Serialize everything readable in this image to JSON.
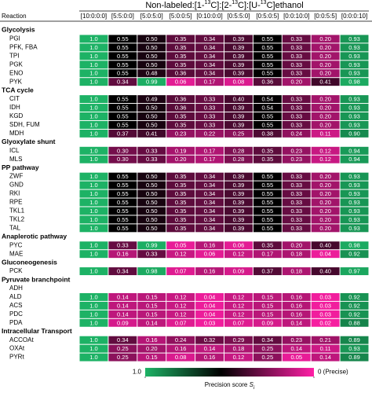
{
  "chart_data": {
    "type": "heatmap",
    "title_parts": [
      "Non-labeled:[1-",
      "13",
      "C]:[2-",
      "13",
      "C]:[U-",
      "13",
      "C]ethanol"
    ],
    "row_header": "Reaction",
    "columns": [
      "[10:0:0:0]",
      "[5:5:0:0]",
      "[5:0:5:0]",
      "[5:0:0:5]",
      "[0:10:0:0]",
      "[0:5:5:0]",
      "[0:5:0:5]",
      "[0:0:10:0]",
      "[0:0:5:5]",
      "[0:0:0:10]"
    ],
    "groups": [
      {
        "name": "Glycolysis",
        "rows": [
          {
            "label": "PGI",
            "values": [
              1,
              0.55,
              0.5,
              0.35,
              0.34,
              0.39,
              0.55,
              0.33,
              0.2,
              0.93
            ],
            "value_labels": [
              "1.0",
              "0.55",
              "0.50",
              "0.35",
              "0.34",
              "0.39",
              "0.55",
              "0.33",
              "0.20",
              "0.93"
            ]
          },
          {
            "label": "PFK, FBA",
            "values": [
              1,
              0.55,
              0.5,
              0.35,
              0.34,
              0.39,
              0.55,
              0.33,
              0.2,
              0.93
            ],
            "value_labels": [
              "1.0",
              "0.55",
              "0.50",
              "0.35",
              "0.34",
              "0.39",
              "0.55",
              "0.33",
              "0.20",
              "0.93"
            ]
          },
          {
            "label": "TPI",
            "values": [
              1,
              0.55,
              0.5,
              0.35,
              0.34,
              0.39,
              0.55,
              0.33,
              0.2,
              0.93
            ],
            "value_labels": [
              "1.0",
              "0.55",
              "0.50",
              "0.35",
              "0.34",
              "0.39",
              "0.55",
              "0.33",
              "0.20",
              "0.93"
            ]
          },
          {
            "label": "PGK",
            "values": [
              1,
              0.55,
              0.5,
              0.35,
              0.34,
              0.39,
              0.55,
              0.33,
              0.2,
              0.93
            ],
            "value_labels": [
              "1.0",
              "0.55",
              "0.50",
              "0.35",
              "0.34",
              "0.39",
              "0.55",
              "0.33",
              "0.20",
              "0.93"
            ]
          },
          {
            "label": "ENO",
            "values": [
              1,
              0.55,
              0.48,
              0.36,
              0.34,
              0.39,
              0.55,
              0.33,
              0.2,
              0.93
            ],
            "value_labels": [
              "1.0",
              "0.55",
              "0.48",
              "0.36",
              "0.34",
              "0.39",
              "0.55",
              "0.33",
              "0.20",
              "0.93"
            ]
          },
          {
            "label": "PYK",
            "values": [
              1,
              0.34,
              0.99,
              0.06,
              0.17,
              0.08,
              0.36,
              0.2,
              0.41,
              0.98
            ],
            "value_labels": [
              "1.0",
              "0.34",
              "0.99",
              "0.06",
              "0.17",
              "0.08",
              "0.36",
              "0.20",
              "0.41",
              "0.98"
            ]
          }
        ]
      },
      {
        "name": "TCA cycle",
        "rows": [
          {
            "label": "CIT",
            "values": [
              1,
              0.55,
              0.49,
              0.36,
              0.33,
              0.4,
              0.54,
              0.33,
              0.2,
              0.93
            ],
            "value_labels": [
              "1.0",
              "0.55",
              "0.49",
              "0.36",
              "0.33",
              "0.40",
              "0.54",
              "0.33",
              "0.20",
              "0.93"
            ]
          },
          {
            "label": "IDH",
            "values": [
              1,
              0.55,
              0.5,
              0.36,
              0.33,
              0.39,
              0.54,
              0.33,
              0.2,
              0.93
            ],
            "value_labels": [
              "1.0",
              "0.55",
              "0.50",
              "0.36",
              "0.33",
              "0.39",
              "0.54",
              "0.33",
              "0.20",
              "0.93"
            ]
          },
          {
            "label": "KGD",
            "values": [
              1,
              0.55,
              0.5,
              0.35,
              0.33,
              0.39,
              0.55,
              0.33,
              0.2,
              0.93
            ],
            "value_labels": [
              "1.0",
              "0.55",
              "0.50",
              "0.35",
              "0.33",
              "0.39",
              "0.55",
              "0.33",
              "0.20",
              "0.93"
            ]
          },
          {
            "label": "SDH, FUM",
            "values": [
              1,
              0.55,
              0.5,
              0.35,
              0.33,
              0.39,
              0.55,
              0.33,
              0.2,
              0.93
            ],
            "value_labels": [
              "1.0",
              "0.55",
              "0.50",
              "0.35",
              "0.33",
              "0.39",
              "0.55",
              "0.33",
              "0.20",
              "0.93"
            ]
          },
          {
            "label": "MDH",
            "values": [
              1,
              0.37,
              0.41,
              0.23,
              0.22,
              0.25,
              0.38,
              0.24,
              0.11,
              0.9
            ],
            "value_labels": [
              "1.0",
              "0.37",
              "0.41",
              "0.23",
              "0.22",
              "0.25",
              "0.38",
              "0.24",
              "0.11",
              "0.90"
            ]
          }
        ]
      },
      {
        "name": "Glyoxylate shunt",
        "rows": [
          {
            "label": "ICL",
            "values": [
              1,
              0.3,
              0.33,
              0.19,
              0.17,
              0.28,
              0.35,
              0.23,
              0.12,
              0.94
            ],
            "value_labels": [
              "1.0",
              "0.30",
              "0.33",
              "0.19",
              "0.17",
              "0.28",
              "0.35",
              "0.23",
              "0.12",
              "0.94"
            ]
          },
          {
            "label": "MLS",
            "values": [
              1,
              0.3,
              0.33,
              0.2,
              0.17,
              0.28,
              0.35,
              0.23,
              0.12,
              0.94
            ],
            "value_labels": [
              "1.0",
              "0.30",
              "0.33",
              "0.20",
              "0.17",
              "0.28",
              "0.35",
              "0.23",
              "0.12",
              "0.94"
            ]
          }
        ]
      },
      {
        "name": "PP pathway",
        "rows": [
          {
            "label": "ZWF",
            "values": [
              1,
              0.55,
              0.5,
              0.35,
              0.34,
              0.39,
              0.55,
              0.33,
              0.2,
              0.93
            ],
            "value_labels": [
              "1.0",
              "0.55",
              "0.50",
              "0.35",
              "0.34",
              "0.39",
              "0.55",
              "0.33",
              "0.20",
              "0.93"
            ]
          },
          {
            "label": "GND",
            "values": [
              1,
              0.55,
              0.5,
              0.35,
              0.34,
              0.39,
              0.55,
              0.33,
              0.2,
              0.93
            ],
            "value_labels": [
              "1.0",
              "0.55",
              "0.50",
              "0.35",
              "0.34",
              "0.39",
              "0.55",
              "0.33",
              "0.20",
              "0.93"
            ]
          },
          {
            "label": "RKI",
            "values": [
              1,
              0.55,
              0.5,
              0.35,
              0.34,
              0.39,
              0.55,
              0.33,
              0.2,
              0.93
            ],
            "value_labels": [
              "1.0",
              "0.55",
              "0.50",
              "0.35",
              "0.34",
              "0.39",
              "0.55",
              "0.33",
              "0.20",
              "0.93"
            ]
          },
          {
            "label": "RPE",
            "values": [
              1,
              0.55,
              0.5,
              0.35,
              0.34,
              0.39,
              0.55,
              0.33,
              0.2,
              0.93
            ],
            "value_labels": [
              "1.0",
              "0.55",
              "0.50",
              "0.35",
              "0.34",
              "0.39",
              "0.55",
              "0.33",
              "0.20",
              "0.93"
            ]
          },
          {
            "label": "TKL1",
            "values": [
              1,
              0.55,
              0.5,
              0.35,
              0.34,
              0.39,
              0.55,
              0.33,
              0.2,
              0.93
            ],
            "value_labels": [
              "1.0",
              "0.55",
              "0.50",
              "0.35",
              "0.34",
              "0.39",
              "0.55",
              "0.33",
              "0.20",
              "0.93"
            ]
          },
          {
            "label": "TKL2",
            "values": [
              1,
              0.55,
              0.5,
              0.35,
              0.34,
              0.39,
              0.55,
              0.33,
              0.2,
              0.93
            ],
            "value_labels": [
              "1.0",
              "0.55",
              "0.50",
              "0.35",
              "0.34",
              "0.39",
              "0.55",
              "0.33",
              "0.20",
              "0.93"
            ]
          },
          {
            "label": "TAL",
            "values": [
              1,
              0.55,
              0.5,
              0.35,
              0.34,
              0.39,
              0.55,
              0.33,
              0.2,
              0.93
            ],
            "value_labels": [
              "1.0",
              "0.55",
              "0.50",
              "0.35",
              "0.34",
              "0.39",
              "0.55",
              "0.33",
              "0.20",
              "0.93"
            ]
          }
        ]
      },
      {
        "name": "Anaplerotic pathway",
        "rows": [
          {
            "label": "PYC",
            "values": [
              1,
              0.33,
              0.99,
              0.05,
              0.16,
              0.06,
              0.35,
              0.2,
              0.4,
              0.98
            ],
            "value_labels": [
              "1.0",
              "0.33",
              "0.99",
              "0.05",
              "0.16",
              "0.06",
              "0.35",
              "0.20",
              "0.40",
              "0.98"
            ]
          },
          {
            "label": "MAE",
            "values": [
              1,
              0.16,
              0.33,
              0.12,
              0.06,
              0.12,
              0.17,
              0.18,
              0.04,
              0.92
            ],
            "value_labels": [
              "1.0",
              "0.16",
              "0.33",
              "0.12",
              "0.06",
              "0.12",
              "0.17",
              "0.18",
              "0.04",
              "0.92"
            ]
          }
        ]
      },
      {
        "name": "Gluconeogenesis",
        "rows": [
          {
            "label": "PCK",
            "values": [
              1,
              0.34,
              0.98,
              0.07,
              0.16,
              0.09,
              0.37,
              0.18,
              0.4,
              0.97
            ],
            "value_labels": [
              "1.0",
              "0.34",
              "0.98",
              "0.07",
              "0.16",
              "0.09",
              "0.37",
              "0.18",
              "0.40",
              "0.97"
            ]
          }
        ]
      },
      {
        "name": "Pyruvate branchpoint",
        "rows": [
          {
            "label": "ADH",
            "values": [],
            "value_labels": []
          },
          {
            "label": "ALD",
            "values": [
              1,
              0.14,
              0.15,
              0.12,
              0.04,
              0.12,
              0.15,
              0.16,
              0.03,
              0.92
            ],
            "value_labels": [
              "1.0",
              "0.14",
              "0.15",
              "0.12",
              "0.04",
              "0.12",
              "0.15",
              "0.16",
              "0.03",
              "0.92"
            ]
          },
          {
            "label": "ACS",
            "values": [
              1,
              0.14,
              0.15,
              0.12,
              0.04,
              0.12,
              0.15,
              0.16,
              0.03,
              0.92
            ],
            "value_labels": [
              "1.0",
              "0.14",
              "0.15",
              "0.12",
              "0.04",
              "0.12",
              "0.15",
              "0.16",
              "0.03",
              "0.92"
            ]
          },
          {
            "label": "PDC",
            "values": [
              1,
              0.14,
              0.15,
              0.12,
              0.04,
              0.12,
              0.15,
              0.16,
              0.03,
              0.92
            ],
            "value_labels": [
              "1.0",
              "0.14",
              "0.15",
              "0.12",
              "0.04",
              "0.12",
              "0.15",
              "0.16",
              "0.03",
              "0.92"
            ]
          },
          {
            "label": "PDA",
            "values": [
              1,
              0.09,
              0.14,
              0.07,
              0.03,
              0.07,
              0.09,
              0.14,
              0.02,
              0.88
            ],
            "value_labels": [
              "1.0",
              "0.09",
              "0.14",
              "0.07",
              "0.03",
              "0.07",
              "0.09",
              "0.14",
              "0.02",
              "0.88"
            ]
          }
        ]
      },
      {
        "name": "Intracellular Transport",
        "rows": [
          {
            "label": "ACCOAt",
            "values": [
              1,
              0.34,
              0.16,
              0.24,
              0.32,
              0.29,
              0.34,
              0.23,
              0.21,
              0.89
            ],
            "value_labels": [
              "1.0",
              "0.34",
              "0.16",
              "0.24",
              "0.32",
              "0.29",
              "0.34",
              "0.23",
              "0.21",
              "0.89"
            ]
          },
          {
            "label": "OXAt",
            "values": [
              1,
              0.25,
              0.2,
              0.16,
              0.14,
              0.18,
              0.25,
              0.14,
              0.11,
              0.93
            ],
            "value_labels": [
              "1.0",
              "0.25",
              "0.20",
              "0.16",
              "0.14",
              "0.18",
              "0.25",
              "0.14",
              "0.11",
              "0.93"
            ]
          },
          {
            "label": "PYRt",
            "values": [
              1,
              0.25,
              0.15,
              0.08,
              0.16,
              0.12,
              0.25,
              0.05,
              0.14,
              0.89
            ],
            "value_labels": [
              "1.0",
              "0.25",
              "0.15",
              "0.08",
              "0.16",
              "0.12",
              "0.25",
              "0.05",
              "0.14",
              "0.89"
            ]
          }
        ]
      }
    ],
    "colorscale": [
      {
        "value": 1,
        "color": "#1db265"
      },
      {
        "value": 0.55,
        "color": "#000000"
      },
      {
        "value": 0,
        "color": "#ff1fa6"
      }
    ],
    "colorbar_ticks": [
      {
        "value": 1,
        "label": "1.0"
      },
      {
        "value": 0,
        "label": "0 (Precise)"
      }
    ],
    "colorbar_title_parts": [
      "Precision score ",
      "S",
      "i"
    ]
  }
}
